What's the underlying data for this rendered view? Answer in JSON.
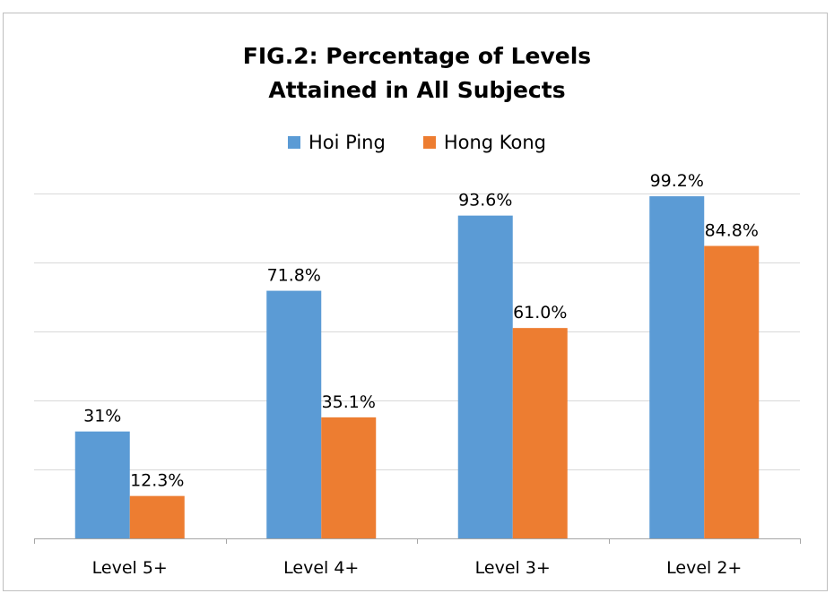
{
  "chart_data": {
    "type": "bar",
    "title_lines": [
      "FIG.2: Percentage of Levels",
      "Attained in All Subjects"
    ],
    "categories": [
      "Level 5+",
      "Level 4+",
      "Level 3+",
      "Level 2+"
    ],
    "series": [
      {
        "name": "Hoi Ping",
        "color": "#5b9bd5",
        "values": [
          31,
          71.8,
          93.6,
          99.2
        ],
        "labels": [
          "31%",
          "71.8%",
          "93.6%",
          "99.2%"
        ]
      },
      {
        "name": "Hong Kong",
        "color": "#ed7d31",
        "values": [
          12.3,
          35.1,
          61.0,
          84.8
        ],
        "labels": [
          "12.3%",
          "35.1%",
          "61.0%",
          "84.8%"
        ]
      }
    ],
    "ylim": [
      0,
      100
    ],
    "grid": true,
    "legend_position": "top-center"
  }
}
